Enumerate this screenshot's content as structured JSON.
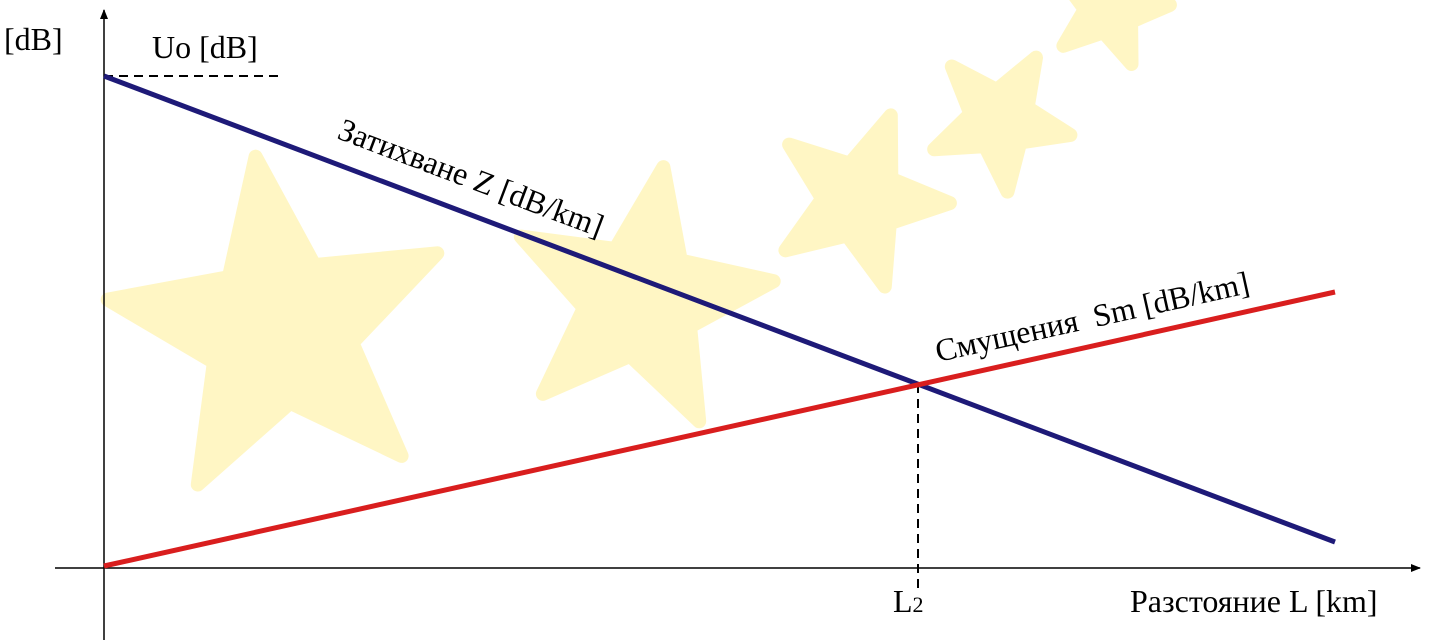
{
  "axes": {
    "y_label": "[dB]",
    "x_label": "Разстояние L [km]",
    "origin_level": "Uo [dB]"
  },
  "lines": [
    {
      "label": "Затихване Z [dB/km]"
    },
    {
      "label": "Смущения  Sm [dB/km]"
    }
  ],
  "intersection": {
    "label": "L",
    "subscript": "2"
  }
}
